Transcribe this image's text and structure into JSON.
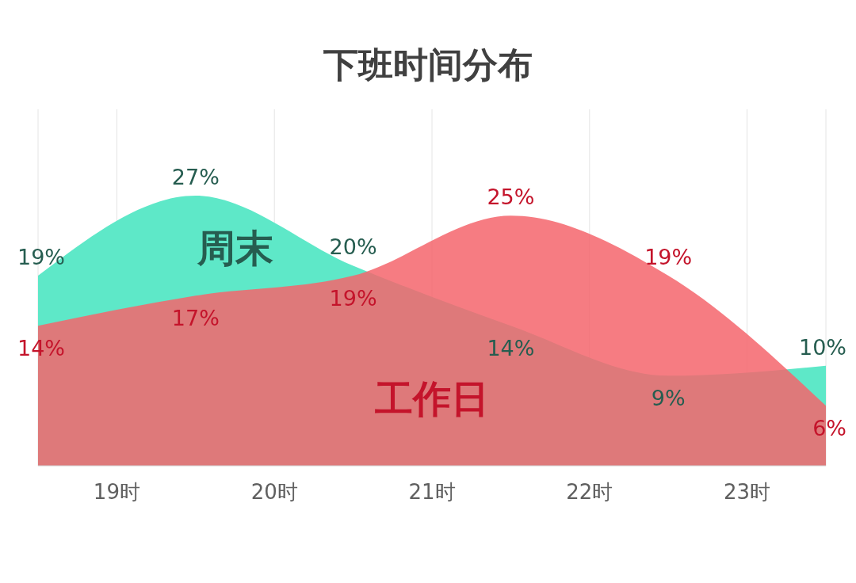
{
  "chart_data": {
    "type": "area",
    "title": "下班时间分布",
    "x": [
      18.5,
      19.5,
      20.5,
      21.5,
      22.5,
      23.5
    ],
    "xlim": [
      18.5,
      23.5
    ],
    "xticks": [
      {
        "value": 19,
        "label": "19时"
      },
      {
        "value": 20,
        "label": "20时"
      },
      {
        "value": 21,
        "label": "21时"
      },
      {
        "value": 22,
        "label": "22时"
      },
      {
        "value": 23,
        "label": "23时"
      }
    ],
    "series": [
      {
        "name": "周末",
        "color": "#5ee8c8",
        "values": [
          19,
          27,
          20,
          14,
          9,
          10
        ],
        "value_labels": [
          "19%",
          "27%",
          "20%",
          "14%",
          "9%",
          "10%"
        ]
      },
      {
        "name": "工作日",
        "color": "#f5656c",
        "values": [
          14,
          17,
          19,
          25,
          19,
          6
        ],
        "value_labels": [
          "14%",
          "17%",
          "19%",
          "25%",
          "19%",
          "6%"
        ]
      }
    ],
    "grid": "x",
    "legend": false
  }
}
